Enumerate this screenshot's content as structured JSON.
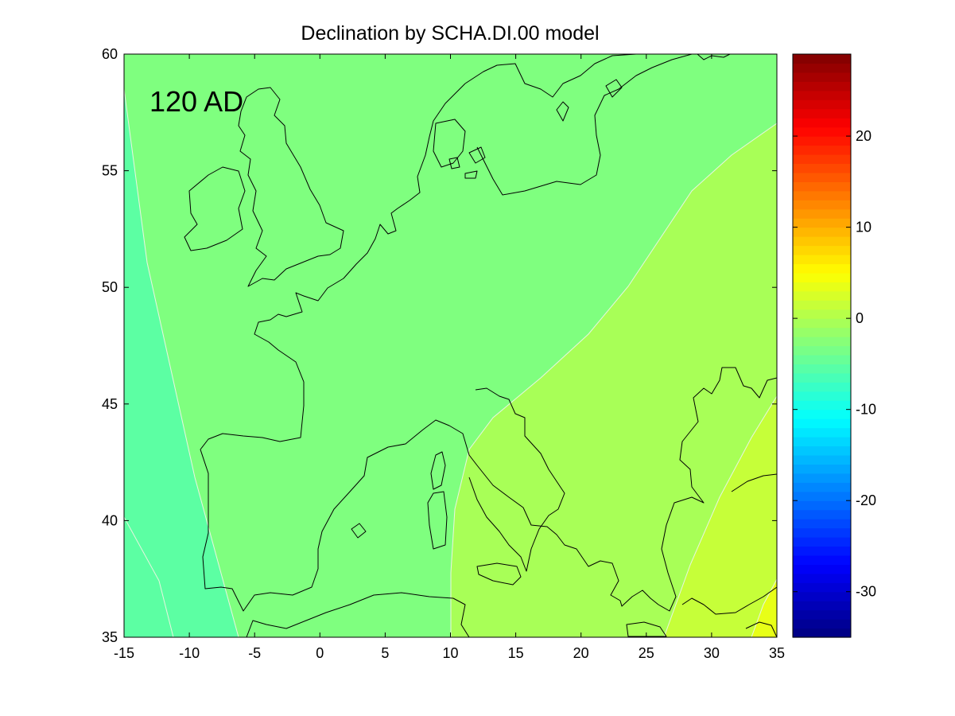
{
  "title": "Declination by SCHA.DI.00 model",
  "epoch_label": "120 AD",
  "chart_data": {
    "type": "heatmap",
    "title": "Declination by SCHA.DI.00 model",
    "xlabel": "",
    "ylabel": "",
    "x_range": [
      -15,
      35
    ],
    "y_range": [
      35,
      60
    ],
    "x_ticks": [
      -15,
      -10,
      -5,
      0,
      5,
      10,
      15,
      20,
      25,
      30,
      35
    ],
    "y_ticks": [
      35,
      40,
      45,
      50,
      55,
      60
    ],
    "colorbar": {
      "range": [
        -35,
        29
      ],
      "ticks": [
        -30,
        -20,
        -10,
        0,
        10,
        20
      ],
      "colormap": "jet"
    },
    "filled_contour_levels": [
      {
        "range": [
          -10,
          -5
        ],
        "color": "#5cffa3"
      },
      {
        "range": [
          -5,
          0
        ],
        "color": "#7fff7f"
      },
      {
        "range": [
          0,
          5
        ],
        "color": "#a8ff57"
      },
      {
        "range": [
          5,
          10
        ],
        "color": "#c6ff39"
      },
      {
        "range": [
          10,
          15
        ],
        "color": "#e8ff17"
      }
    ],
    "annotation": "120 AD",
    "grid": false
  }
}
